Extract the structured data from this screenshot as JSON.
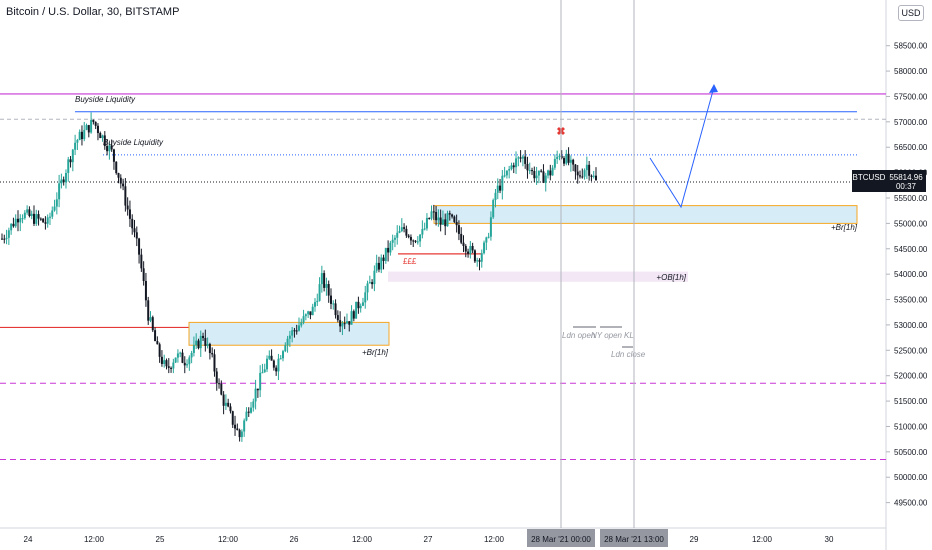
{
  "header": {
    "title": "Bitcoin / U.S. Dollar, 30, BITSTAMP",
    "currency_badge": "USD"
  },
  "colors": {
    "up": "#26a69a",
    "down": "#131722",
    "purple_line": "#c836d6",
    "blue_line": "#2962ff",
    "red_line": "#e53935",
    "zone_fill": "#d6ecf7",
    "zone_border": "#f5a623",
    "ob_fill": "#f3e6f5",
    "price_label_bg": "#131722"
  },
  "chart_data": {
    "type": "candlestick",
    "symbol": "BTCUSD",
    "last_price": "55814.96",
    "countdown": "00:37",
    "y_ticks": [
      "58500.00",
      "58000.00",
      "57500.00",
      "57000.00",
      "56500.00",
      "56000.00",
      "55500.00",
      "55000.00",
      "54500.00",
      "54000.00",
      "53500.00",
      "53000.00",
      "52500.00",
      "52000.00",
      "51500.00",
      "51000.00",
      "50500.00",
      "50000.00",
      "49500.00"
    ],
    "y_range": [
      49000,
      59400
    ],
    "x_ticks": [
      "24",
      "12:00",
      "25",
      "12:00",
      "26",
      "12:00",
      "27",
      "12:00",
      "28 Mar '21  00:00",
      "28 Mar '21  13:00",
      "29",
      "12:00",
      "30"
    ],
    "price_path": [
      [
        0,
        54700
      ],
      [
        2,
        55200
      ],
      [
        5,
        55000
      ],
      [
        8,
        56600
      ],
      [
        10,
        57000
      ],
      [
        12,
        56400
      ],
      [
        13,
        55800
      ],
      [
        14,
        55100
      ],
      [
        15,
        54400
      ],
      [
        16,
        53200
      ],
      [
        17,
        52500
      ],
      [
        18,
        52100
      ],
      [
        19,
        52400
      ],
      [
        20,
        52300
      ],
      [
        21,
        52500
      ],
      [
        22,
        52800
      ],
      [
        23,
        52300
      ],
      [
        24,
        51600
      ],
      [
        25,
        51200
      ],
      [
        26,
        50800
      ],
      [
        27,
        51400
      ],
      [
        28,
        51800
      ],
      [
        29,
        52300
      ],
      [
        30,
        52200
      ],
      [
        31,
        52700
      ],
      [
        32,
        52900
      ],
      [
        33,
        53100
      ],
      [
        34,
        53300
      ],
      [
        35,
        53900
      ],
      [
        36,
        53500
      ],
      [
        37,
        53100
      ],
      [
        38,
        53100
      ],
      [
        39,
        53400
      ],
      [
        40,
        53700
      ],
      [
        41,
        54100
      ],
      [
        42,
        54400
      ],
      [
        43,
        54700
      ],
      [
        44,
        54900
      ],
      [
        45,
        54700
      ],
      [
        46,
        54800
      ],
      [
        47,
        55200
      ],
      [
        48,
        55000
      ],
      [
        49,
        55100
      ],
      [
        50,
        54800
      ],
      [
        51,
        54500
      ],
      [
        52,
        54300
      ],
      [
        53,
        54600
      ],
      [
        54,
        55600
      ],
      [
        55,
        55900
      ],
      [
        56,
        56200
      ],
      [
        57,
        56300
      ],
      [
        58,
        56000
      ],
      [
        59,
        55900
      ],
      [
        60,
        56000
      ],
      [
        61,
        56400
      ],
      [
        62,
        56200
      ],
      [
        63,
        55900
      ],
      [
        64,
        56150
      ],
      [
        65,
        55814.96
      ]
    ],
    "ylabel": "",
    "xlabel": "",
    "grid": false,
    "legend": "none"
  },
  "annotations": {
    "buyside_top": "Buyside Liquidity",
    "buyside_mid": "Buyside Liquidity",
    "br_1h_right": "+Br[1h]",
    "br_1h_left": "+Br[1h]",
    "ob_1h": "+OB[1h]",
    "eee": "£££",
    "ldn_open": "Ldn open",
    "ny_open": "NY open",
    "kl": "KL",
    "ldn_close": "Ldn close",
    "purple_top_price": 57550,
    "purple_bottom_1": 51850,
    "purple_bottom_2": 50350,
    "blue_top_price": 57200,
    "buyside_mid_price": 56350,
    "dashed_top_price": 57050
  }
}
